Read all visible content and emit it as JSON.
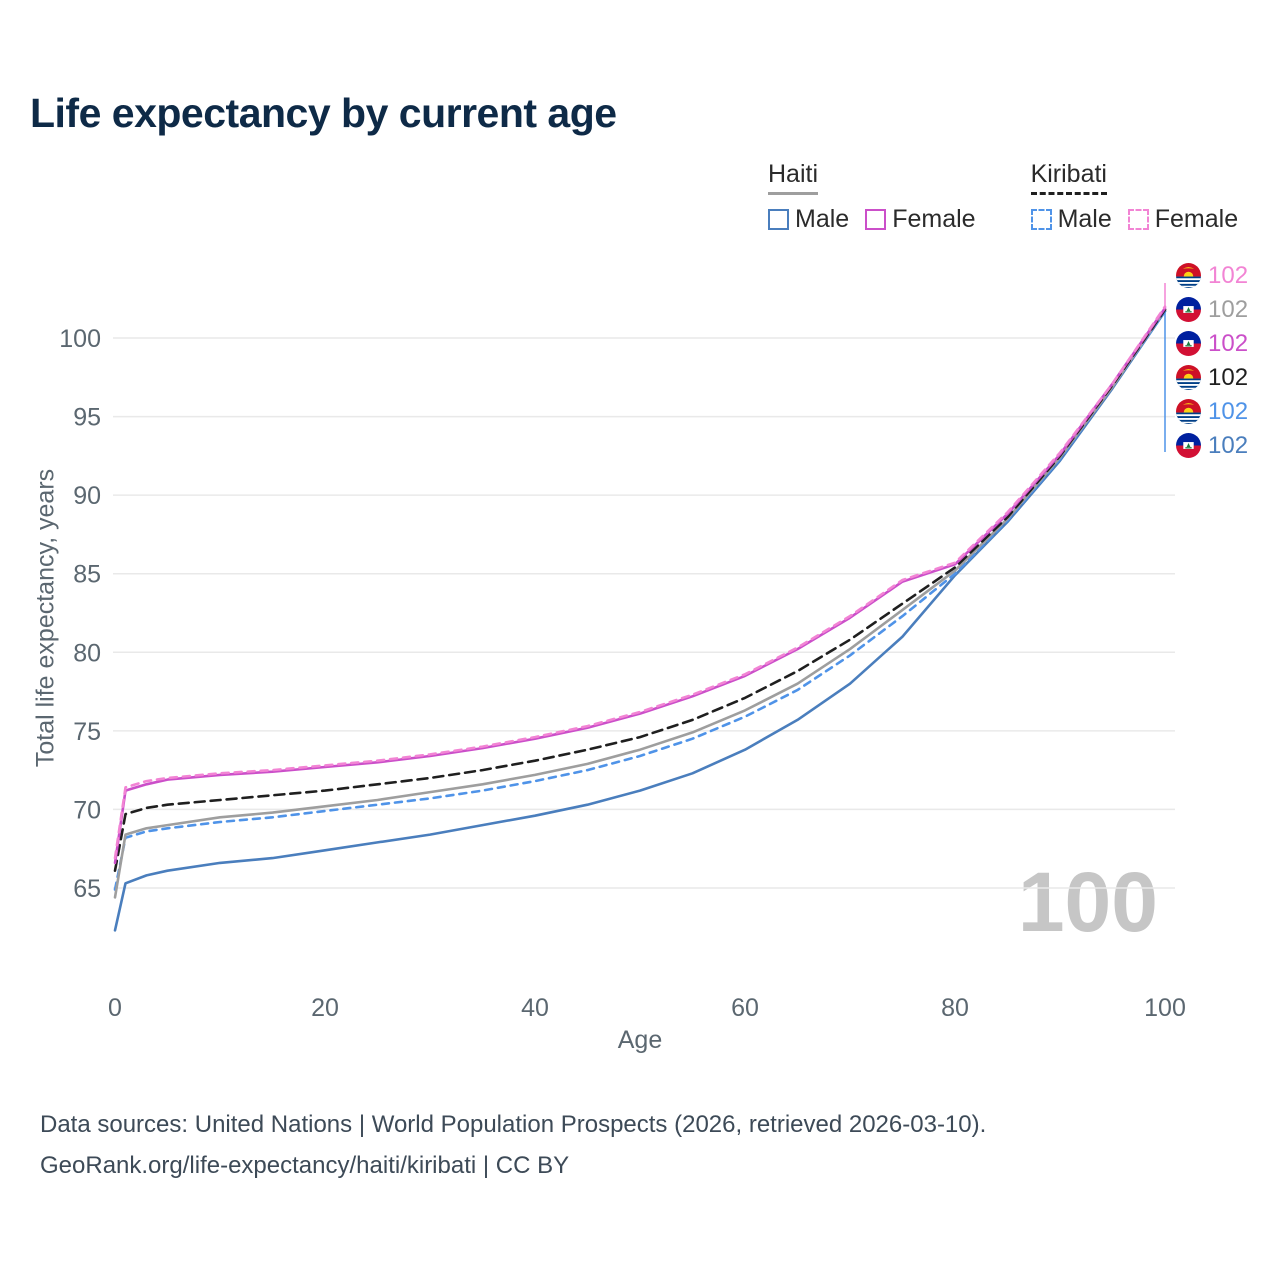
{
  "title": "Life expectancy by current age",
  "watermark_age": "100",
  "legend": {
    "groups": [
      {
        "label": "Haiti",
        "line_style": "solid",
        "color": "#9e9e9e",
        "items": [
          {
            "label": "Male",
            "color": "#4a7ebd",
            "dashed": false
          },
          {
            "label": "Female",
            "color": "#cb4fc9",
            "dashed": false
          }
        ]
      },
      {
        "label": "Kiribati",
        "line_style": "dashed",
        "color": "#1f1f1f",
        "items": [
          {
            "label": "Male",
            "color": "#4f93e8",
            "dashed": true
          },
          {
            "label": "Female",
            "color": "#f284d4",
            "dashed": true
          }
        ]
      }
    ]
  },
  "axes": {
    "x_title": "Age",
    "y_title": "Total life expectancy, years"
  },
  "end_labels": [
    {
      "flag": "kiribati",
      "series": "Kiribati Female",
      "value": "102",
      "color": "#f284d4"
    },
    {
      "flag": "haiti",
      "series": "Haiti Both sexes",
      "value": "102",
      "color": "#9e9e9e"
    },
    {
      "flag": "haiti",
      "series": "Haiti Female",
      "value": "102",
      "color": "#cb4fc9"
    },
    {
      "flag": "kiribati",
      "series": "Kiribati Both sexes",
      "value": "102",
      "color": "#1f1f1f"
    },
    {
      "flag": "kiribati",
      "series": "Kiribati Male",
      "value": "102",
      "color": "#4f93e8"
    },
    {
      "flag": "haiti",
      "series": "Haiti Male",
      "value": "102",
      "color": "#4a7ebd"
    }
  ],
  "footer": {
    "line1": "Data sources: United Nations | World Population Prospects (2026, retrieved 2026-03-10).",
    "line2": "GeoRank.org/life-expectancy/haiti/kiribati | CC BY"
  },
  "chart_data": {
    "type": "line",
    "title": "Life expectancy by current age",
    "xlabel": "Age",
    "ylabel": "Total life expectancy, years",
    "xlim": [
      0,
      100
    ],
    "ylim": [
      61.5,
      103.5
    ],
    "xticks": [
      0,
      20,
      40,
      60,
      80,
      100
    ],
    "yticks": [
      65,
      70,
      75,
      80,
      85,
      90,
      95,
      100
    ],
    "grid": "horizontal",
    "legend_position": "top-right",
    "x": [
      0,
      1,
      3,
      5,
      10,
      15,
      20,
      25,
      30,
      35,
      40,
      45,
      50,
      55,
      60,
      65,
      70,
      75,
      80,
      85,
      90,
      95,
      100
    ],
    "series": [
      {
        "name": "Haiti Male",
        "color": "#4a7ebd",
        "dashed": false,
        "values": [
          62.3,
          65.3,
          65.8,
          66.1,
          66.6,
          66.9,
          67.4,
          67.9,
          68.4,
          69.0,
          69.6,
          70.3,
          71.2,
          72.3,
          73.8,
          75.7,
          78.0,
          81.0,
          84.9,
          88.3,
          92.2,
          96.8,
          101.7
        ]
      },
      {
        "name": "Kiribati Male",
        "color": "#4f93e8",
        "dashed": true,
        "values": [
          64.9,
          68.2,
          68.6,
          68.8,
          69.2,
          69.5,
          69.9,
          70.3,
          70.7,
          71.2,
          71.8,
          72.5,
          73.4,
          74.5,
          75.9,
          77.6,
          79.8,
          82.3,
          85.0,
          88.4,
          92.3,
          96.9,
          101.7
        ]
      },
      {
        "name": "Haiti Both sexes",
        "color": "#9e9e9e",
        "dashed": false,
        "values": [
          64.4,
          68.4,
          68.8,
          69.0,
          69.5,
          69.8,
          70.2,
          70.6,
          71.1,
          71.6,
          72.2,
          72.9,
          73.8,
          74.9,
          76.3,
          78.0,
          80.2,
          82.7,
          85.2,
          88.5,
          92.4,
          96.9,
          101.8
        ]
      },
      {
        "name": "Kiribati Both sexes",
        "color": "#1f1f1f",
        "dashed": true,
        "values": [
          66.1,
          69.7,
          70.1,
          70.3,
          70.6,
          70.9,
          71.2,
          71.6,
          72.0,
          72.5,
          73.1,
          73.8,
          74.6,
          75.7,
          77.1,
          78.8,
          80.8,
          83.1,
          85.4,
          88.6,
          92.5,
          97.0,
          101.8
        ]
      },
      {
        "name": "Haiti Female",
        "color": "#cb4fc9",
        "dashed": false,
        "values": [
          66.6,
          71.2,
          71.6,
          71.9,
          72.2,
          72.4,
          72.7,
          73.0,
          73.4,
          73.9,
          74.5,
          75.2,
          76.1,
          77.2,
          78.5,
          80.2,
          82.2,
          84.5,
          85.6,
          88.8,
          92.6,
          97.1,
          101.9
        ]
      },
      {
        "name": "Kiribati Female",
        "color": "#f284d4",
        "dashed": true,
        "values": [
          66.9,
          71.4,
          71.8,
          72.0,
          72.3,
          72.5,
          72.8,
          73.1,
          73.5,
          74.0,
          74.6,
          75.3,
          76.2,
          77.3,
          78.6,
          80.3,
          82.3,
          84.6,
          85.7,
          88.9,
          92.7,
          97.1,
          102.0
        ]
      }
    ]
  }
}
